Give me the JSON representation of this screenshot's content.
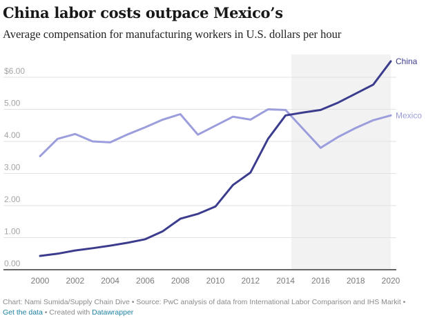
{
  "header": {
    "title": "China labor costs outpace Mexico’s",
    "subtitle": "Average compensation for manufacturing workers in U.S. dollars per hour"
  },
  "footer": {
    "credit": "Chart: Nami Sumida/Supply Chain Dive • Source: PwC analysis of data from International Labor Comparison and IHS Markit •",
    "get_data_label": "Get the data",
    "separator": " • Created with ",
    "datawrapper_label": "Datawrapper"
  },
  "chart_data": {
    "type": "line",
    "title": "China labor costs outpace Mexico’s",
    "subtitle": "Average compensation for manufacturing workers in U.S. dollars per hour",
    "xlabel": "",
    "ylabel": "",
    "x": [
      2000,
      2001,
      2002,
      2003,
      2004,
      2005,
      2006,
      2007,
      2008,
      2009,
      2010,
      2011,
      2012,
      2013,
      2014,
      2015,
      2016,
      2017,
      2018,
      2019,
      2020
    ],
    "series": [
      {
        "name": "China",
        "color": "#3c3c8f",
        "values": [
          0.43,
          0.5,
          0.6,
          0.67,
          0.75,
          0.84,
          0.95,
          1.2,
          1.59,
          1.74,
          1.97,
          2.64,
          3.03,
          4.08,
          4.81,
          4.9,
          4.98,
          5.21,
          5.49,
          5.77,
          6.5
        ]
      },
      {
        "name": "Mexico",
        "color": "#9b9ddc",
        "values": [
          3.54,
          4.08,
          4.23,
          4.0,
          3.97,
          4.22,
          4.44,
          4.68,
          4.85,
          4.21,
          4.49,
          4.77,
          4.68,
          5.0,
          4.98,
          4.39,
          3.8,
          4.14,
          4.42,
          4.66,
          4.81
        ]
      }
    ],
    "xlim": [
      2000,
      2020
    ],
    "ylim": [
      0,
      6
    ],
    "x_ticks": [
      "2000",
      "2002",
      "2004",
      "2006",
      "2008",
      "2010",
      "2012",
      "2014",
      "2016",
      "2018",
      "2020"
    ],
    "y_ticks": [
      {
        "value": 6,
        "label": "$6.00"
      },
      {
        "value": 5,
        "label": "5.00"
      },
      {
        "value": 4,
        "label": "4.00"
      },
      {
        "value": 3,
        "label": "3.00"
      },
      {
        "value": 2,
        "label": "2.00"
      },
      {
        "value": 1,
        "label": "1.00"
      },
      {
        "value": 0,
        "label": "0.00"
      }
    ],
    "grid": true,
    "legend": "direct labels at line ends (right)",
    "shaded_range": {
      "from": 2014.33,
      "to": 2020,
      "color": "#f2f2f2"
    }
  }
}
